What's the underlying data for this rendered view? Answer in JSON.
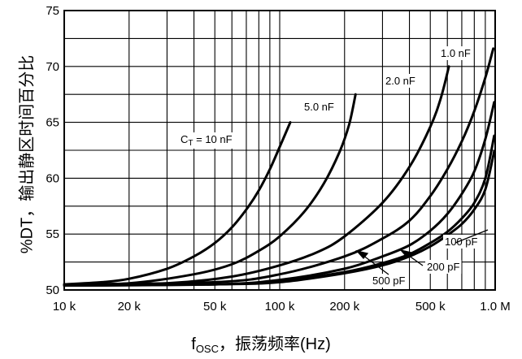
{
  "chart_data": {
    "type": "line",
    "xlabel": "fOSC，振荡频率(Hz)",
    "xlabel_main": "f",
    "xlabel_sub": "OSC",
    "xlabel_rest": "，振荡频率(Hz)",
    "ylabel": "%DT，输出静区时间百分比",
    "x_scale": "log",
    "xlim": [
      10000,
      1000000
    ],
    "ylim": [
      50,
      75
    ],
    "grid": true,
    "x_ticks": [
      {
        "value": 10000,
        "label": "10 k"
      },
      {
        "value": 20000,
        "label": "20 k"
      },
      {
        "value": 50000,
        "label": "50 k"
      },
      {
        "value": 100000,
        "label": "100 k"
      },
      {
        "value": 200000,
        "label": "200 k"
      },
      {
        "value": 500000,
        "label": "500 k"
      },
      {
        "value": 1000000,
        "label": "1.0 M"
      }
    ],
    "y_ticks": [
      {
        "value": 50,
        "label": "50"
      },
      {
        "value": 55,
        "label": "55"
      },
      {
        "value": 60,
        "label": "60"
      },
      {
        "value": 65,
        "label": "65"
      },
      {
        "value": 70,
        "label": "70"
      },
      {
        "value": 75,
        "label": "75"
      }
    ],
    "series": [
      {
        "name": "CT = 10 nF",
        "label_main": "C",
        "label_sub": "T",
        "label_rest": " = 10 nF",
        "x": [
          10000,
          15000,
          20000,
          30000,
          40000,
          50000,
          60000,
          70000,
          80000,
          90000,
          100000,
          112000
        ],
        "y": [
          50.5,
          50.7,
          51.0,
          51.9,
          53.0,
          54.2,
          55.6,
          57.2,
          58.9,
          60.8,
          62.8,
          65.0
        ]
      },
      {
        "name": "5.0 nF",
        "x": [
          10000,
          20000,
          40000,
          60000,
          80000,
          100000,
          130000,
          160000,
          190000,
          210000,
          225000
        ],
        "y": [
          50.5,
          50.6,
          51.4,
          52.3,
          53.5,
          54.8,
          57.0,
          59.5,
          62.4,
          64.8,
          67.5
        ]
      },
      {
        "name": "2.0 nF",
        "x": [
          10000,
          30000,
          60000,
          100000,
          150000,
          200000,
          300000,
          400000,
          500000,
          560000,
          610000
        ],
        "y": [
          50.5,
          50.6,
          51.2,
          52.2,
          53.4,
          54.8,
          57.8,
          61.0,
          64.6,
          67.2,
          70.0
        ]
      },
      {
        "name": "1.0 nF",
        "x": [
          10000,
          50000,
          100000,
          200000,
          300000,
          400000,
          500000,
          600000,
          700000,
          800000,
          900000,
          980000
        ],
        "y": [
          50.5,
          50.7,
          51.4,
          53.0,
          54.6,
          56.2,
          58.4,
          60.8,
          63.3,
          66.0,
          69.0,
          71.6
        ]
      },
      {
        "name": "500 pF",
        "x": [
          10000,
          50000,
          100000,
          200000,
          300000,
          400000,
          500000,
          600000,
          700000,
          800000,
          900000,
          990000
        ],
        "y": [
          50.4,
          50.5,
          50.9,
          51.9,
          53.0,
          54.0,
          55.3,
          56.8,
          58.6,
          60.6,
          63.5,
          66.8
        ]
      },
      {
        "name": "200 pF",
        "x": [
          10000,
          50000,
          100000,
          200000,
          300000,
          400000,
          500000,
          600000,
          700000,
          800000,
          900000,
          990000
        ],
        "y": [
          50.4,
          50.5,
          50.8,
          51.6,
          52.4,
          53.2,
          54.2,
          55.2,
          56.4,
          57.8,
          60.0,
          63.8
        ]
      },
      {
        "name": "100 pF",
        "x": [
          10000,
          50000,
          100000,
          200000,
          300000,
          400000,
          500000,
          600000,
          700000,
          800000,
          900000,
          990000
        ],
        "y": [
          50.4,
          50.5,
          50.7,
          51.5,
          52.2,
          53.0,
          53.9,
          54.9,
          55.9,
          57.2,
          59.0,
          62.4
        ]
      }
    ]
  }
}
